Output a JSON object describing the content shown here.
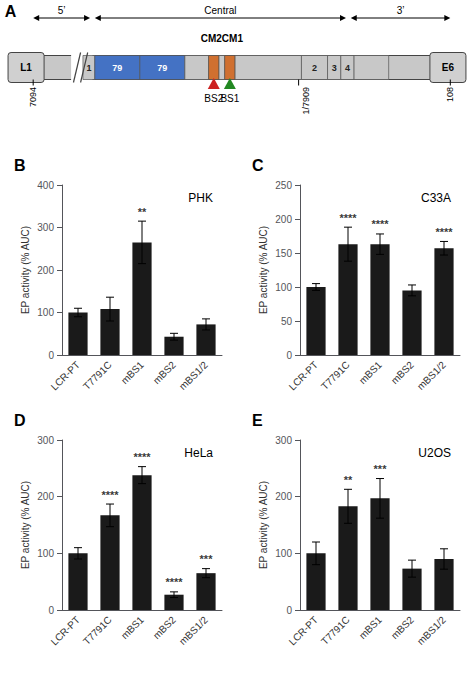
{
  "chart_data": [
    {
      "type": "diagram",
      "panel_label": "A",
      "regions": [
        "5’",
        "Central",
        "3’"
      ],
      "ends": [
        "L1",
        "E6"
      ],
      "segment_labels": [
        "1",
        "79",
        "79",
        null,
        null,
        null,
        null,
        null,
        "2",
        "3",
        "4",
        null
      ],
      "sites": [
        "BS2",
        "BS1"
      ],
      "cm_label": "CM2CM1",
      "tick_labels": [
        "7094",
        "1/7909",
        "108"
      ]
    },
    {
      "type": "bar",
      "panel_label": "B",
      "title": "PHK",
      "ylabel": "EP activity (% AUC)",
      "categories": [
        "LCR-PT",
        "T7791C",
        "mBS1",
        "mBS2",
        "mBS1/2"
      ],
      "values": [
        100,
        108,
        265,
        43,
        72
      ],
      "errors": [
        10,
        28,
        50,
        8,
        13
      ],
      "annotations": [
        null,
        null,
        "**",
        null,
        null
      ],
      "color": "#1a1a1a",
      "ylim": [
        0,
        400
      ],
      "yticks": [
        0,
        100,
        200,
        300,
        400
      ],
      "grid": false
    },
    {
      "type": "bar",
      "panel_label": "C",
      "title": "C33A",
      "ylabel": "EP activity (% AUC)",
      "categories": [
        "LCR-PT",
        "T7791C",
        "mBS1",
        "mBS2",
        "mBS1/2"
      ],
      "values": [
        100,
        163,
        163,
        95,
        157
      ],
      "errors": [
        5,
        25,
        15,
        8,
        10
      ],
      "annotations": [
        null,
        "****",
        "****",
        null,
        "****"
      ],
      "color": "#1a1a1a",
      "ylim": [
        0,
        250
      ],
      "yticks": [
        0,
        50,
        100,
        150,
        200,
        250
      ],
      "grid": false
    },
    {
      "type": "bar",
      "panel_label": "D",
      "title": "HeLa",
      "ylabel": "EP activity (% AUC)",
      "categories": [
        "LCR-PT",
        "T7791C",
        "mBS1",
        "mBS2",
        "mBS1/2"
      ],
      "values": [
        100,
        167,
        238,
        27,
        65
      ],
      "errors": [
        10,
        20,
        15,
        5,
        8
      ],
      "annotations": [
        null,
        "****",
        "****",
        "****",
        "***"
      ],
      "color": "#1a1a1a",
      "ylim": [
        0,
        300
      ],
      "yticks": [
        0,
        100,
        200,
        300
      ],
      "grid": false
    },
    {
      "type": "bar",
      "panel_label": "E",
      "title": "U2OS",
      "ylabel": "EP activity (% AUC)",
      "categories": [
        "LCR-PT",
        "T7791C",
        "mBS1",
        "mBS2",
        "mBS1/2"
      ],
      "values": [
        100,
        183,
        197,
        73,
        90
      ],
      "errors": [
        20,
        30,
        35,
        15,
        18
      ],
      "annotations": [
        null,
        "**",
        "***",
        null,
        null
      ],
      "color": "#1a1a1a",
      "ylim": [
        0,
        300
      ],
      "yticks": [
        0,
        100,
        200,
        300
      ],
      "grid": false
    }
  ]
}
